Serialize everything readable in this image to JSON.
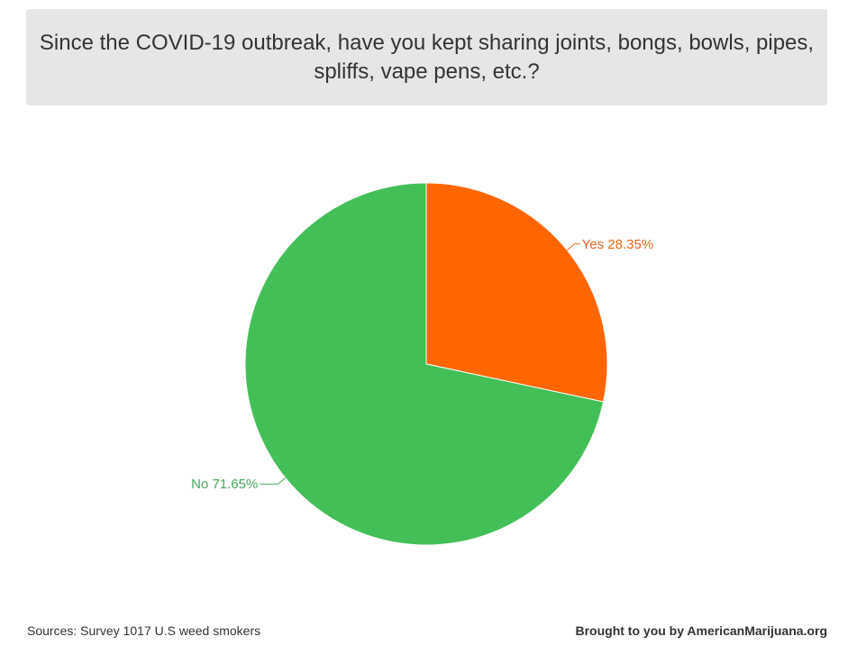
{
  "chart_data": {
    "type": "pie",
    "title": "Since the COVID-19 outbreak, have you kept sharing joints, bongs, bowls, pipes, spliffs, vape pens, etc.?",
    "slices": [
      {
        "label": "Yes",
        "value": 28.35,
        "display": "Yes 28.35%",
        "color": "#ff6600"
      },
      {
        "label": "No",
        "value": 71.65,
        "display": "No 71.65%",
        "color": "#43bf57"
      }
    ],
    "label_colors": {
      "Yes": "#e8661a",
      "No": "#46a65a"
    }
  },
  "footer": {
    "sources": "Sources: Survey 1017 U.S weed smokers",
    "credit": "Brought to you by AmericanMarijuana.org"
  }
}
